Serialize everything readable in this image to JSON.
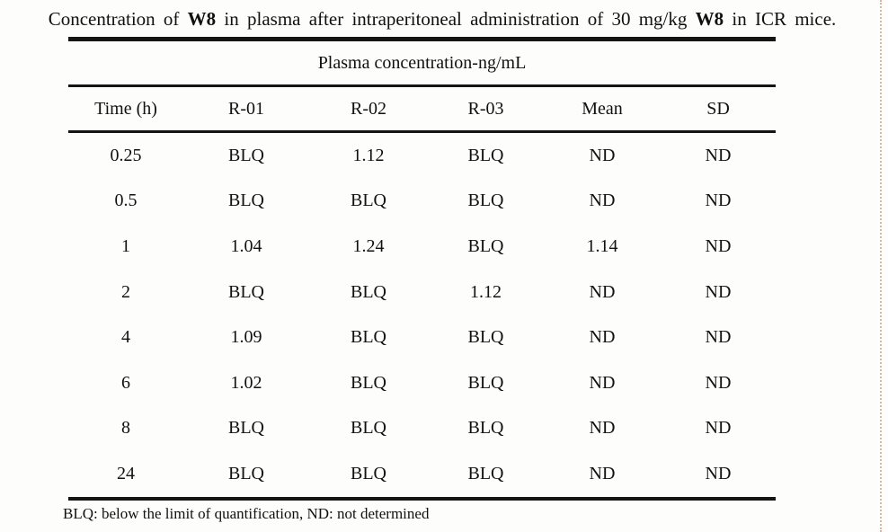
{
  "caption": {
    "parts": [
      {
        "text": "Concentration of "
      },
      {
        "text": "W8",
        "bold": true
      },
      {
        "text": " in plasma after intraperitoneal administration of 30 mg/kg "
      },
      {
        "text": "W8",
        "bold": true
      },
      {
        "text": " in ICR mice."
      }
    ]
  },
  "table": {
    "span_header": "Plasma concentration-ng/mL",
    "columns": [
      "Time (h)",
      "R-01",
      "R-02",
      "R-03",
      "Mean",
      "SD"
    ],
    "rows": [
      [
        "0.25",
        "BLQ",
        "1.12",
        "BLQ",
        "ND",
        "ND"
      ],
      [
        "0.5",
        "BLQ",
        "BLQ",
        "BLQ",
        "ND",
        "ND"
      ],
      [
        "1",
        "1.04",
        "1.24",
        "BLQ",
        "1.14",
        "ND"
      ],
      [
        "2",
        "BLQ",
        "BLQ",
        "1.12",
        "ND",
        "ND"
      ],
      [
        "4",
        "1.09",
        "BLQ",
        "BLQ",
        "ND",
        "ND"
      ],
      [
        "6",
        "1.02",
        "BLQ",
        "BLQ",
        "ND",
        "ND"
      ],
      [
        "8",
        "BLQ",
        "BLQ",
        "BLQ",
        "ND",
        "ND"
      ],
      [
        "24",
        "BLQ",
        "BLQ",
        "BLQ",
        "ND",
        "ND"
      ]
    ],
    "footnote": "BLQ: below the limit of quantification, ND: not determined"
  },
  "colors": {
    "ink": "#111111",
    "page_background": "#fdfdfb",
    "scan_edge_dots": "#c57a55"
  }
}
